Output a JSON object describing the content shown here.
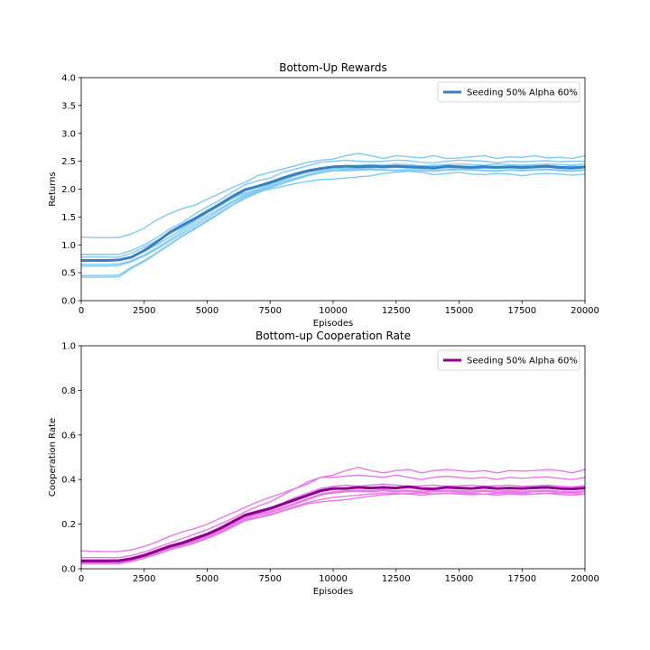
{
  "chart_data": [
    {
      "type": "line",
      "title": "Bottom-Up Rewards",
      "xlabel": "Episodes",
      "ylabel": "Returns",
      "xlim": [
        0,
        20000
      ],
      "ylim": [
        0,
        4.0
      ],
      "x_ticks": [
        0,
        2500,
        5000,
        7500,
        10000,
        12500,
        15000,
        17500,
        20000
      ],
      "y_ticks": [
        0.0,
        0.5,
        1.0,
        1.5,
        2.0,
        2.5,
        3.0,
        3.5,
        4.0
      ],
      "y_tick_labels": [
        "0.0",
        "0.5",
        "1.0",
        "1.5",
        "2.0",
        "2.5",
        "3.0",
        "3.5",
        "4.0"
      ],
      "grid": false,
      "legend_position": "top-right",
      "legend_entries": [
        "Seeding 50% Alpha 60%"
      ],
      "colors": {
        "mean": "#3a7fbf",
        "runs": "#7fc9f2"
      },
      "x": [
        0,
        500,
        1000,
        1500,
        2000,
        2500,
        3000,
        3500,
        4000,
        4500,
        5000,
        5500,
        6000,
        6500,
        7000,
        7500,
        8000,
        8500,
        9000,
        9500,
        10000,
        10500,
        11000,
        11500,
        12000,
        12500,
        13000,
        13500,
        14000,
        14500,
        15000,
        15500,
        16000,
        16500,
        17000,
        17500,
        18000,
        18500,
        19000,
        19500,
        20000
      ],
      "mean_series": {
        "name": "Seeding 50% Alpha 60%",
        "values": [
          0.72,
          0.72,
          0.72,
          0.73,
          0.78,
          0.9,
          1.05,
          1.22,
          1.35,
          1.47,
          1.6,
          1.73,
          1.87,
          1.99,
          2.05,
          2.12,
          2.2,
          2.27,
          2.33,
          2.37,
          2.4,
          2.41,
          2.4,
          2.41,
          2.4,
          2.41,
          2.4,
          2.39,
          2.38,
          2.41,
          2.4,
          2.39,
          2.4,
          2.39,
          2.4,
          2.39,
          2.4,
          2.41,
          2.39,
          2.38,
          2.4
        ]
      },
      "run_series": [
        [
          1.14,
          1.13,
          1.13,
          1.13,
          1.2,
          1.3,
          1.45,
          1.56,
          1.65,
          1.71,
          1.82,
          1.92,
          2.03,
          2.12,
          2.24,
          2.3,
          2.36,
          2.42,
          2.48,
          2.52,
          2.54,
          2.6,
          2.64,
          2.6,
          2.55,
          2.6,
          2.58,
          2.56,
          2.6,
          2.55,
          2.56,
          2.58,
          2.6,
          2.55,
          2.58,
          2.57,
          2.6,
          2.56,
          2.57,
          2.55,
          2.6
        ],
        [
          0.83,
          0.83,
          0.83,
          0.83,
          0.9,
          1.0,
          1.13,
          1.28,
          1.4,
          1.55,
          1.68,
          1.8,
          1.95,
          2.08,
          2.15,
          2.2,
          2.3,
          2.36,
          2.42,
          2.48,
          2.5,
          2.52,
          2.5,
          2.49,
          2.5,
          2.52,
          2.51,
          2.48,
          2.47,
          2.5,
          2.52,
          2.51,
          2.5,
          2.47,
          2.5,
          2.49,
          2.5,
          2.51,
          2.49,
          2.5,
          2.5
        ],
        [
          0.78,
          0.78,
          0.78,
          0.78,
          0.85,
          0.96,
          1.08,
          1.2,
          1.31,
          1.44,
          1.57,
          1.7,
          1.84,
          1.97,
          2.04,
          2.1,
          2.17,
          2.25,
          2.32,
          2.36,
          2.4,
          2.42,
          2.43,
          2.44,
          2.43,
          2.45,
          2.44,
          2.42,
          2.43,
          2.44,
          2.45,
          2.44,
          2.43,
          2.45,
          2.44,
          2.43,
          2.44,
          2.45,
          2.44,
          2.43,
          2.45
        ],
        [
          0.72,
          0.72,
          0.72,
          0.73,
          0.78,
          0.88,
          1.0,
          1.14,
          1.28,
          1.42,
          1.57,
          1.7,
          1.83,
          1.93,
          2.0,
          2.08,
          2.16,
          2.24,
          2.3,
          2.34,
          2.38,
          2.37,
          2.38,
          2.39,
          2.38,
          2.39,
          2.38,
          2.37,
          2.36,
          2.38,
          2.38,
          2.37,
          2.38,
          2.37,
          2.38,
          2.37,
          2.38,
          2.39,
          2.37,
          2.36,
          2.38
        ],
        [
          0.65,
          0.65,
          0.65,
          0.66,
          0.72,
          0.82,
          0.95,
          1.09,
          1.24,
          1.38,
          1.52,
          1.65,
          1.78,
          1.9,
          1.98,
          2.05,
          2.13,
          2.2,
          2.26,
          2.31,
          2.35,
          2.34,
          2.35,
          2.36,
          2.35,
          2.34,
          2.35,
          2.34,
          2.33,
          2.35,
          2.36,
          2.35,
          2.34,
          2.33,
          2.35,
          2.34,
          2.35,
          2.36,
          2.34,
          2.33,
          2.35
        ],
        [
          0.62,
          0.62,
          0.62,
          0.63,
          0.7,
          0.8,
          0.92,
          1.06,
          1.2,
          1.34,
          1.48,
          1.62,
          1.76,
          1.88,
          1.96,
          2.03,
          2.1,
          2.17,
          2.24,
          2.29,
          2.33,
          2.33,
          2.34,
          2.35,
          2.34,
          2.33,
          2.34,
          2.33,
          2.32,
          2.34,
          2.35,
          2.34,
          2.33,
          2.32,
          2.34,
          2.33,
          2.34,
          2.35,
          2.33,
          2.32,
          2.34
        ],
        [
          0.45,
          0.45,
          0.45,
          0.46,
          0.6,
          0.72,
          0.86,
          1.01,
          1.16,
          1.3,
          1.44,
          1.58,
          1.72,
          1.85,
          1.95,
          2.0,
          2.05,
          2.1,
          2.14,
          2.17,
          2.18,
          2.2,
          2.22,
          2.24,
          2.28,
          2.3,
          2.32,
          2.3,
          2.26,
          2.28,
          2.3,
          2.27,
          2.26,
          2.28,
          2.27,
          2.24,
          2.27,
          2.28,
          2.27,
          2.25,
          2.27
        ],
        [
          0.42,
          0.42,
          0.42,
          0.43,
          0.58,
          0.7,
          0.85,
          1.0,
          1.15,
          1.28,
          1.42,
          1.56,
          1.71,
          1.83,
          1.93,
          2.02,
          2.1,
          2.18,
          2.25,
          2.3,
          2.34,
          2.36,
          2.37,
          2.38,
          2.4,
          2.39,
          2.38,
          2.4,
          2.41,
          2.39,
          2.4,
          2.38,
          2.4,
          2.41,
          2.39,
          2.4,
          2.41,
          2.39,
          2.4,
          2.41,
          2.4
        ]
      ]
    },
    {
      "type": "line",
      "title": "Bottom-up Cooperation Rate",
      "xlabel": "Episodes",
      "ylabel": "Cooperation Rate",
      "xlim": [
        0,
        20000
      ],
      "ylim": [
        0,
        1.0
      ],
      "x_ticks": [
        0,
        2500,
        5000,
        7500,
        10000,
        12500,
        15000,
        17500,
        20000
      ],
      "y_ticks": [
        0.0,
        0.2,
        0.4,
        0.6,
        0.8,
        1.0
      ],
      "y_tick_labels": [
        "0.0",
        "0.2",
        "0.4",
        "0.6",
        "0.8",
        "1.0"
      ],
      "grid": false,
      "legend_position": "top-right",
      "legend_entries": [
        "Seeding 50% Alpha 60%"
      ],
      "colors": {
        "mean": "#8b008b",
        "runs": "#e67ae6"
      },
      "x": [
        0,
        500,
        1000,
        1500,
        2000,
        2500,
        3000,
        3500,
        4000,
        4500,
        5000,
        5500,
        6000,
        6500,
        7000,
        7500,
        8000,
        8500,
        9000,
        9500,
        10000,
        10500,
        11000,
        11500,
        12000,
        12500,
        13000,
        13500,
        14000,
        14500,
        15000,
        15500,
        16000,
        16500,
        17000,
        17500,
        18000,
        18500,
        19000,
        19500,
        20000
      ],
      "mean_series": {
        "name": "Seeding 50% Alpha 60%",
        "values": [
          0.035,
          0.035,
          0.035,
          0.036,
          0.045,
          0.06,
          0.08,
          0.1,
          0.115,
          0.135,
          0.155,
          0.18,
          0.21,
          0.24,
          0.255,
          0.27,
          0.29,
          0.31,
          0.33,
          0.35,
          0.36,
          0.36,
          0.365,
          0.362,
          0.365,
          0.362,
          0.368,
          0.36,
          0.358,
          0.365,
          0.362,
          0.36,
          0.365,
          0.36,
          0.362,
          0.36,
          0.363,
          0.365,
          0.36,
          0.358,
          0.362
        ]
      },
      "run_series": [
        [
          0.08,
          0.078,
          0.077,
          0.077,
          0.085,
          0.1,
          0.12,
          0.145,
          0.165,
          0.18,
          0.2,
          0.225,
          0.25,
          0.275,
          0.3,
          0.32,
          0.34,
          0.36,
          0.38,
          0.41,
          0.42,
          0.44,
          0.455,
          0.44,
          0.43,
          0.44,
          0.445,
          0.43,
          0.44,
          0.445,
          0.44,
          0.435,
          0.44,
          0.43,
          0.44,
          0.438,
          0.44,
          0.445,
          0.44,
          0.43,
          0.445
        ],
        [
          0.05,
          0.05,
          0.05,
          0.05,
          0.06,
          0.075,
          0.095,
          0.115,
          0.135,
          0.155,
          0.175,
          0.2,
          0.225,
          0.255,
          0.28,
          0.3,
          0.33,
          0.36,
          0.39,
          0.41,
          0.41,
          0.415,
          0.42,
          0.415,
          0.41,
          0.42,
          0.41,
          0.4,
          0.41,
          0.415,
          0.41,
          0.405,
          0.41,
          0.4,
          0.41,
          0.405,
          0.41,
          0.412,
          0.405,
          0.4,
          0.41
        ],
        [
          0.04,
          0.04,
          0.04,
          0.04,
          0.05,
          0.065,
          0.085,
          0.105,
          0.12,
          0.14,
          0.16,
          0.185,
          0.215,
          0.245,
          0.26,
          0.275,
          0.295,
          0.32,
          0.34,
          0.36,
          0.37,
          0.375,
          0.37,
          0.375,
          0.38,
          0.375,
          0.37,
          0.372,
          0.375,
          0.37,
          0.372,
          0.375,
          0.37,
          0.372,
          0.375,
          0.37,
          0.372,
          0.375,
          0.37,
          0.368,
          0.372
        ],
        [
          0.035,
          0.035,
          0.035,
          0.035,
          0.045,
          0.058,
          0.078,
          0.098,
          0.113,
          0.13,
          0.15,
          0.175,
          0.205,
          0.235,
          0.25,
          0.265,
          0.285,
          0.305,
          0.325,
          0.345,
          0.355,
          0.36,
          0.362,
          0.36,
          0.365,
          0.36,
          0.365,
          0.358,
          0.36,
          0.362,
          0.36,
          0.358,
          0.362,
          0.358,
          0.36,
          0.358,
          0.36,
          0.362,
          0.358,
          0.355,
          0.36
        ],
        [
          0.03,
          0.03,
          0.03,
          0.03,
          0.04,
          0.055,
          0.072,
          0.092,
          0.108,
          0.125,
          0.145,
          0.17,
          0.2,
          0.23,
          0.245,
          0.258,
          0.275,
          0.295,
          0.315,
          0.335,
          0.345,
          0.35,
          0.352,
          0.35,
          0.355,
          0.35,
          0.352,
          0.348,
          0.35,
          0.352,
          0.35,
          0.348,
          0.352,
          0.348,
          0.35,
          0.348,
          0.35,
          0.352,
          0.348,
          0.345,
          0.35
        ],
        [
          0.028,
          0.028,
          0.028,
          0.028,
          0.038,
          0.052,
          0.07,
          0.09,
          0.105,
          0.122,
          0.142,
          0.166,
          0.195,
          0.225,
          0.24,
          0.252,
          0.27,
          0.29,
          0.31,
          0.33,
          0.34,
          0.345,
          0.348,
          0.345,
          0.35,
          0.345,
          0.348,
          0.342,
          0.345,
          0.348,
          0.345,
          0.342,
          0.348,
          0.342,
          0.345,
          0.342,
          0.345,
          0.348,
          0.342,
          0.34,
          0.345
        ],
        [
          0.025,
          0.025,
          0.025,
          0.025,
          0.035,
          0.05,
          0.067,
          0.087,
          0.102,
          0.118,
          0.138,
          0.162,
          0.19,
          0.22,
          0.232,
          0.245,
          0.262,
          0.28,
          0.298,
          0.31,
          0.32,
          0.325,
          0.33,
          0.335,
          0.34,
          0.338,
          0.335,
          0.33,
          0.335,
          0.338,
          0.335,
          0.332,
          0.335,
          0.33,
          0.335,
          0.332,
          0.335,
          0.338,
          0.333,
          0.33,
          0.335
        ],
        [
          0.022,
          0.022,
          0.022,
          0.022,
          0.032,
          0.047,
          0.064,
          0.084,
          0.099,
          0.115,
          0.135,
          0.158,
          0.186,
          0.215,
          0.228,
          0.24,
          0.258,
          0.275,
          0.292,
          0.3,
          0.305,
          0.31,
          0.318,
          0.325,
          0.332,
          0.335,
          0.338,
          0.34,
          0.335,
          0.338,
          0.34,
          0.338,
          0.335,
          0.338,
          0.34,
          0.338,
          0.335,
          0.338,
          0.34,
          0.338,
          0.335
        ]
      ]
    }
  ]
}
